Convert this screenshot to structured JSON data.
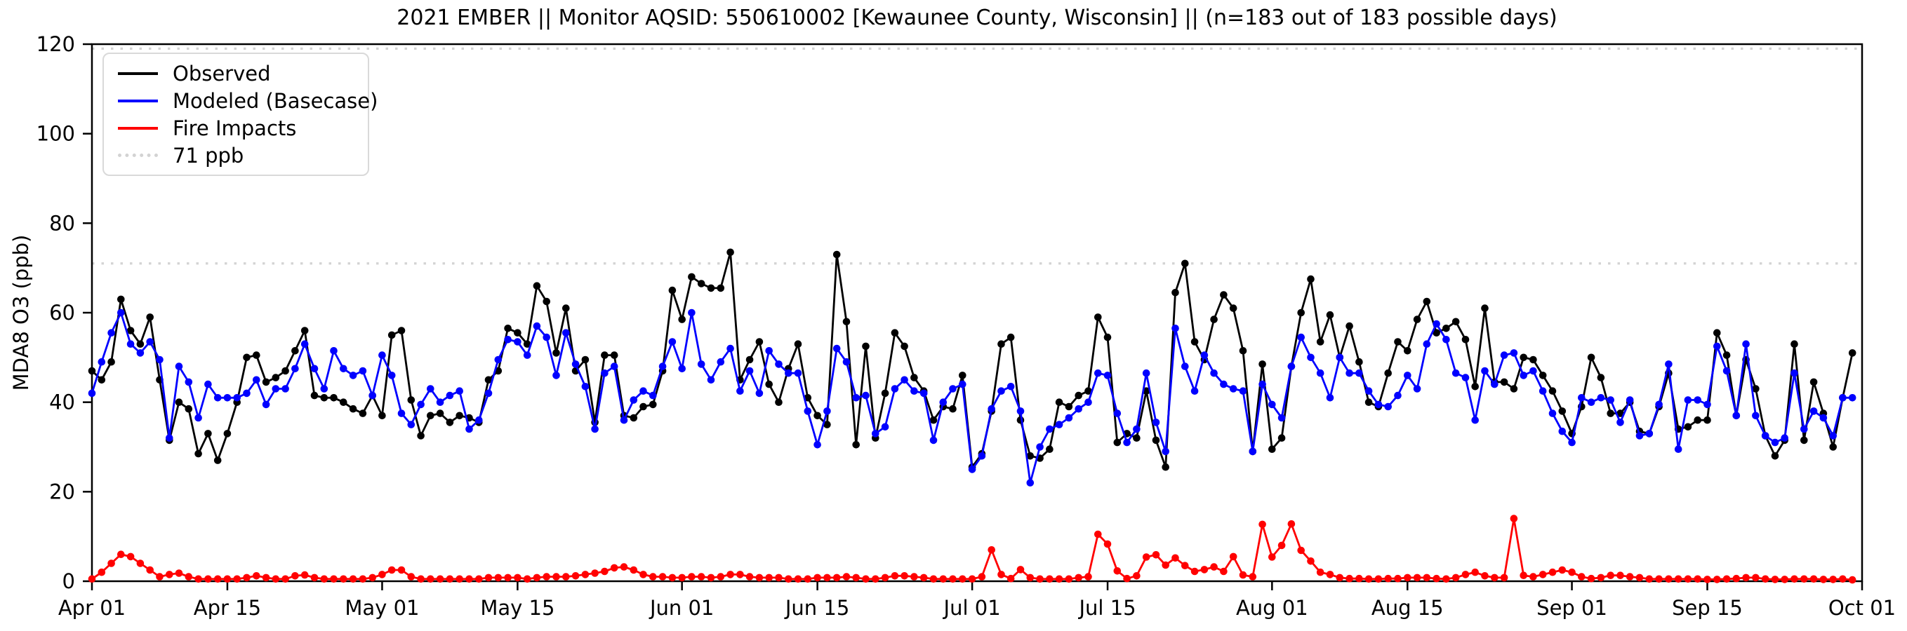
{
  "chart_data": {
    "type": "line",
    "title": "2021 EMBER || Monitor AQSID: 550610002 [Kewaunee County, Wisconsin] || (n=183 out of 183 possible days)",
    "ylabel": "MDA8 O3 (ppb)",
    "xlabel": "",
    "ylim": [
      0,
      120
    ],
    "yticks": [
      0,
      20,
      40,
      60,
      80,
      100,
      120
    ],
    "x_range": [
      "Apr 01",
      "Oct 01"
    ],
    "n_days": 183,
    "grid": false,
    "legend_position": "upper-left",
    "xticks": [
      {
        "day": 0,
        "label": "Apr 01"
      },
      {
        "day": 14,
        "label": "Apr 15"
      },
      {
        "day": 30,
        "label": "May 01"
      },
      {
        "day": 44,
        "label": "May 15"
      },
      {
        "day": 61,
        "label": "Jun 01"
      },
      {
        "day": 75,
        "label": "Jun 15"
      },
      {
        "day": 91,
        "label": "Jul 01"
      },
      {
        "day": 105,
        "label": "Jul 15"
      },
      {
        "day": 122,
        "label": "Aug 01"
      },
      {
        "day": 136,
        "label": "Aug 15"
      },
      {
        "day": 153,
        "label": "Sep 01"
      },
      {
        "day": 167,
        "label": "Sep 15"
      },
      {
        "day": 183,
        "label": "Oct 01"
      }
    ],
    "reference_lines": [
      {
        "label": "71 ppb",
        "value": 71,
        "color": "#d3d3d3",
        "style": "dotted"
      },
      {
        "label": "",
        "value": 119,
        "color": "#d3d3d3",
        "style": "dotted"
      }
    ],
    "series": [
      {
        "name": "Observed",
        "color": "#000000",
        "marker": "circle",
        "values": [
          47,
          45,
          49,
          63,
          56,
          53,
          59,
          45,
          31.5,
          40,
          38.5,
          28.5,
          33,
          27,
          33,
          40,
          50,
          50.5,
          44.5,
          45.5,
          47,
          51.5,
          56,
          41.5,
          41,
          41,
          40,
          38.5,
          37.5,
          41.5,
          37,
          55,
          56,
          40.5,
          32.5,
          37,
          37.5,
          35.5,
          37,
          36.5,
          35.5,
          45,
          47,
          56.5,
          55.5,
          53,
          66,
          62.5,
          51,
          61,
          47,
          49.5,
          35.5,
          50.5,
          50.5,
          37,
          36.5,
          39,
          39.5,
          47,
          65,
          58.5,
          68,
          66.5,
          65.5,
          65.5,
          73.5,
          45,
          49.5,
          53.5,
          44,
          40,
          47.5,
          53,
          41,
          37,
          35,
          73,
          58,
          30.5,
          52.5,
          32,
          42,
          55.5,
          52.5,
          45.5,
          42.5,
          36,
          39,
          38.5,
          46,
          25.5,
          28.5,
          38,
          53,
          54.5,
          36,
          28,
          27.5,
          29.5,
          40,
          39,
          41.5,
          42.5,
          59,
          54.5,
          31,
          33,
          32,
          42.5,
          31.5,
          25.5,
          64.5,
          71,
          53.5,
          49.5,
          58.5,
          64,
          61,
          51.5,
          29,
          48.5,
          29.5,
          32,
          48,
          60,
          67.5,
          53.5,
          59.5,
          50,
          57,
          49,
          40,
          39,
          46.5,
          53.5,
          51.5,
          58.5,
          62.5,
          55.5,
          56.5,
          58,
          54,
          43.5,
          61,
          44.5,
          44.5,
          43,
          50,
          49.5,
          46,
          42.5,
          38,
          33,
          39,
          50,
          45.5,
          37.5,
          37.5,
          40,
          33.5,
          33,
          39,
          46.5,
          34,
          34.5,
          36,
          36,
          55.5,
          50.5,
          37,
          49.5,
          43,
          32.5,
          28,
          31.5,
          53,
          31.5,
          44.5,
          37.5,
          30,
          41,
          51
        ]
      },
      {
        "name": "Modeled (Basecase)",
        "color": "#0000ff",
        "marker": "circle",
        "values": [
          42,
          49,
          55.5,
          60,
          53,
          51,
          53.5,
          49.5,
          32,
          48,
          44.5,
          36.5,
          44,
          41,
          41,
          41,
          42,
          45,
          39.5,
          43,
          43,
          47.5,
          53,
          47.5,
          43,
          51.5,
          47.5,
          46,
          47,
          41.5,
          50.5,
          46,
          37.5,
          35,
          39.5,
          43,
          40,
          41.5,
          42.5,
          34,
          36,
          42,
          49.5,
          54,
          53.5,
          50.5,
          57,
          54.5,
          46,
          55.5,
          48.5,
          43.5,
          34,
          46.5,
          48,
          36,
          40.5,
          42.5,
          41.5,
          48,
          53.5,
          47.5,
          60,
          48.5,
          45,
          49,
          52,
          42.5,
          47,
          42,
          51.5,
          48.5,
          46.5,
          46.5,
          38,
          30.5,
          38,
          52,
          49,
          41,
          41.5,
          33,
          34.5,
          43,
          45,
          42.5,
          42,
          31.5,
          40,
          43,
          44,
          25,
          28,
          38.5,
          42.5,
          43.5,
          38,
          22,
          30,
          34,
          35,
          36.5,
          38.5,
          40,
          46.5,
          46,
          37.5,
          31,
          34,
          46.5,
          35.5,
          29,
          56.5,
          48,
          42.5,
          50.5,
          46.5,
          44,
          43,
          42.5,
          29,
          44,
          39.5,
          36.5,
          48,
          54.5,
          50,
          46.5,
          41,
          50,
          46.5,
          46.5,
          42.5,
          39.5,
          39,
          41.5,
          46,
          43,
          53,
          57.5,
          54,
          46.5,
          45.5,
          36,
          47,
          44,
          50.5,
          51,
          46,
          47,
          42.5,
          37.5,
          33.5,
          31,
          41,
          40,
          41,
          40.5,
          35.5,
          40.5,
          32.5,
          33,
          39.5,
          48.5,
          29.5,
          40.5,
          40.5,
          39.5,
          52.5,
          47,
          37,
          53,
          37,
          32.5,
          31,
          32,
          46.5,
          34,
          38,
          36.5,
          32.5,
          41,
          41
        ]
      },
      {
        "name": "Fire Impacts",
        "color": "#ff0000",
        "marker": "circle",
        "values": [
          0.5,
          2,
          4,
          6,
          5.5,
          4,
          2.5,
          1,
          1.5,
          1.8,
          1,
          0.5,
          0.5,
          0.5,
          0.5,
          0.5,
          0.8,
          1.2,
          0.8,
          0.5,
          0.5,
          1.2,
          1.4,
          0.8,
          0.5,
          0.5,
          0.5,
          0.5,
          0.5,
          0.8,
          1.5,
          2.5,
          2.5,
          1,
          0.5,
          0.5,
          0.5,
          0.5,
          0.5,
          0.5,
          0.5,
          0.8,
          0.8,
          0.8,
          0.8,
          0.5,
          0.8,
          1,
          1,
          1,
          1.2,
          1.5,
          1.8,
          2.2,
          3,
          3.2,
          2.5,
          1.5,
          1,
          1,
          0.8,
          0.8,
          1,
          1,
          0.8,
          1,
          1.5,
          1.5,
          1,
          0.8,
          0.8,
          0.8,
          0.5,
          0.5,
          0.5,
          0.8,
          0.8,
          0.8,
          1,
          0.8,
          0.5,
          0.5,
          0.8,
          1.2,
          1.2,
          1,
          0.8,
          0.5,
          0.5,
          0.5,
          0.5,
          0.5,
          1,
          7,
          1.5,
          0.6,
          2.6,
          0.8,
          0.5,
          0.5,
          0.5,
          0.5,
          0.8,
          1,
          10.5,
          8.3,
          2.3,
          0.6,
          1.2,
          5.4,
          5.9,
          3.6,
          5.2,
          3.5,
          2.2,
          2.6,
          3.2,
          2.2,
          5.5,
          1.4,
          1,
          12.7,
          5.4,
          8,
          12.8,
          6.9,
          4.5,
          2,
          1.5,
          0.8,
          0.6,
          0.6,
          0.5,
          0.5,
          0.6,
          0.6,
          0.8,
          0.8,
          0.8,
          0.6,
          0.5,
          0.8,
          1.5,
          2,
          1.2,
          0.8,
          0.8,
          14,
          1.3,
          1,
          1.5,
          2,
          2.5,
          2,
          1,
          0.6,
          0.8,
          1.3,
          1.3,
          1,
          0.8,
          0.5,
          0.5,
          0.5,
          0.5,
          0.5,
          0.5,
          0.4,
          0.4,
          0.5,
          0.6,
          0.8,
          0.8,
          0.5,
          0.4,
          0.4,
          0.5,
          0.5,
          0.5,
          0.4,
          0.4,
          0.5,
          0.3
        ]
      }
    ]
  }
}
